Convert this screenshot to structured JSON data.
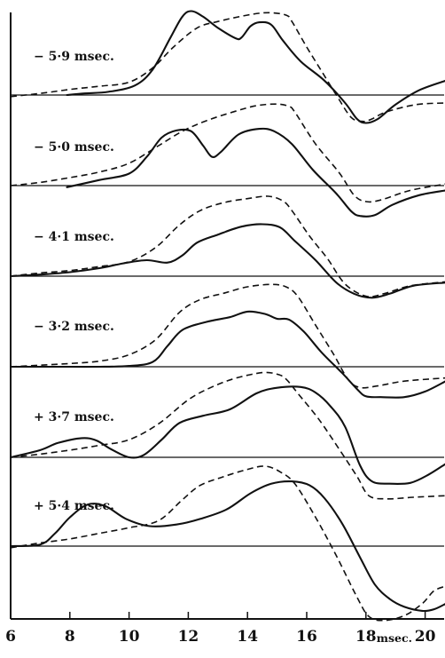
{
  "chart_data": {
    "type": "line",
    "title": "",
    "xlabel": "msec.",
    "ylabel": "",
    "xlim": [
      6,
      20.7
    ],
    "x_ticks": [
      6,
      8,
      10,
      12,
      14,
      16,
      18,
      20
    ],
    "x_tick_labels": [
      "6",
      "8",
      "10",
      "12",
      "14",
      "16",
      "18",
      "20"
    ],
    "unit_label": "msec.",
    "grid": false,
    "legend": "none",
    "note": "",
    "panels": [
      {
        "label": "− 5·9 msec.",
        "solid": [
          [
            7.9,
            0.0
          ],
          [
            8.5,
            0.1
          ],
          [
            9.3,
            0.2
          ],
          [
            10.2,
            0.6
          ],
          [
            10.8,
            1.6
          ],
          [
            11.4,
            3.6
          ],
          [
            11.8,
            4.9
          ],
          [
            12.1,
            5.25
          ],
          [
            12.5,
            4.9
          ],
          [
            13.0,
            4.2
          ],
          [
            13.6,
            3.55
          ],
          [
            13.8,
            3.6
          ],
          [
            14.1,
            4.3
          ],
          [
            14.4,
            4.55
          ],
          [
            14.8,
            4.4
          ],
          [
            15.2,
            3.4
          ],
          [
            15.8,
            2.1
          ],
          [
            16.6,
            0.9
          ],
          [
            17.3,
            -0.5
          ],
          [
            17.7,
            -1.5
          ],
          [
            18.0,
            -1.75
          ],
          [
            18.4,
            -1.5
          ],
          [
            19.0,
            -0.6
          ],
          [
            19.8,
            0.3
          ],
          [
            20.7,
            0.9
          ]
        ],
        "dashed": [
          [
            6.0,
            -0.1
          ],
          [
            7.0,
            0.1
          ],
          [
            8.0,
            0.35
          ],
          [
            9.0,
            0.55
          ],
          [
            10.0,
            0.8
          ],
          [
            10.8,
            1.7
          ],
          [
            11.5,
            3.0
          ],
          [
            12.3,
            4.2
          ],
          [
            13.0,
            4.6
          ],
          [
            14.0,
            5.0
          ],
          [
            14.7,
            5.15
          ],
          [
            15.3,
            5.0
          ],
          [
            15.5,
            4.6
          ],
          [
            16.0,
            3.0
          ],
          [
            16.5,
            1.5
          ],
          [
            17.0,
            0.0
          ],
          [
            17.5,
            -1.4
          ],
          [
            17.9,
            -1.65
          ],
          [
            18.2,
            -1.5
          ],
          [
            18.7,
            -1.05
          ],
          [
            19.7,
            -0.6
          ],
          [
            20.7,
            -0.5
          ]
        ]
      },
      {
        "label": "− 5·0 msec.",
        "solid": [
          [
            7.9,
            -0.1
          ],
          [
            9.0,
            0.35
          ],
          [
            10.0,
            0.75
          ],
          [
            10.6,
            1.8
          ],
          [
            11.1,
            3.0
          ],
          [
            11.6,
            3.45
          ],
          [
            12.1,
            3.4
          ],
          [
            12.5,
            2.5
          ],
          [
            12.8,
            1.8
          ],
          [
            13.1,
            2.1
          ],
          [
            13.7,
            3.2
          ],
          [
            14.4,
            3.55
          ],
          [
            14.9,
            3.4
          ],
          [
            15.5,
            2.6
          ],
          [
            16.2,
            1.0
          ],
          [
            17.0,
            -0.5
          ],
          [
            17.5,
            -1.6
          ],
          [
            17.8,
            -1.9
          ],
          [
            18.3,
            -1.85
          ],
          [
            18.9,
            -1.2
          ],
          [
            19.8,
            -0.6
          ],
          [
            20.7,
            -0.3
          ]
        ],
        "dashed": [
          [
            6.0,
            0.0
          ],
          [
            7.0,
            0.2
          ],
          [
            8.0,
            0.5
          ],
          [
            9.0,
            0.85
          ],
          [
            10.0,
            1.4
          ],
          [
            11.0,
            2.5
          ],
          [
            11.8,
            3.4
          ],
          [
            12.6,
            4.05
          ],
          [
            13.5,
            4.6
          ],
          [
            14.3,
            5.0
          ],
          [
            15.0,
            5.1
          ],
          [
            15.4,
            4.95
          ],
          [
            15.6,
            4.6
          ],
          [
            16.3,
            2.6
          ],
          [
            17.1,
            0.8
          ],
          [
            17.6,
            -0.6
          ],
          [
            18.0,
            -1.0
          ],
          [
            18.5,
            -0.9
          ],
          [
            19.5,
            -0.3
          ],
          [
            20.7,
            0.1
          ]
        ]
      },
      {
        "label": "− 4·1 msec.",
        "solid": [
          [
            6.0,
            0.0
          ],
          [
            7.0,
            0.1
          ],
          [
            8.0,
            0.25
          ],
          [
            9.0,
            0.5
          ],
          [
            9.8,
            0.8
          ],
          [
            10.6,
            1.0
          ],
          [
            11.3,
            0.85
          ],
          [
            11.8,
            1.3
          ],
          [
            12.3,
            2.1
          ],
          [
            13.0,
            2.6
          ],
          [
            13.8,
            3.1
          ],
          [
            14.5,
            3.25
          ],
          [
            15.1,
            3.05
          ],
          [
            15.6,
            2.2
          ],
          [
            16.3,
            1.0
          ],
          [
            17.0,
            -0.4
          ],
          [
            17.6,
            -1.1
          ],
          [
            18.2,
            -1.35
          ],
          [
            18.8,
            -1.1
          ],
          [
            19.6,
            -0.6
          ],
          [
            20.7,
            -0.4
          ]
        ],
        "dashed": [
          [
            6.0,
            0.0
          ],
          [
            7.0,
            0.2
          ],
          [
            8.0,
            0.35
          ],
          [
            9.0,
            0.6
          ],
          [
            10.0,
            0.9
          ],
          [
            10.9,
            1.8
          ],
          [
            11.7,
            3.2
          ],
          [
            12.4,
            4.1
          ],
          [
            13.2,
            4.6
          ],
          [
            14.0,
            4.85
          ],
          [
            14.7,
            5.0
          ],
          [
            15.2,
            4.7
          ],
          [
            15.5,
            4.1
          ],
          [
            16.1,
            2.5
          ],
          [
            16.7,
            1.1
          ],
          [
            17.3,
            -0.5
          ],
          [
            18.0,
            -1.25
          ],
          [
            18.6,
            -1.1
          ],
          [
            19.5,
            -0.6
          ],
          [
            20.7,
            -0.35
          ]
        ]
      },
      {
        "label": "− 3·2 msec.",
        "solid": [
          [
            6.0,
            0.0
          ],
          [
            7.0,
            0.0
          ],
          [
            8.0,
            0.0
          ],
          [
            9.0,
            0.0
          ],
          [
            10.0,
            0.05
          ],
          [
            10.8,
            0.3
          ],
          [
            11.3,
            1.3
          ],
          [
            11.8,
            2.3
          ],
          [
            12.6,
            2.8
          ],
          [
            13.4,
            3.1
          ],
          [
            14.0,
            3.45
          ],
          [
            14.6,
            3.3
          ],
          [
            15.0,
            3.0
          ],
          [
            15.4,
            2.95
          ],
          [
            15.9,
            2.2
          ],
          [
            16.5,
            0.9
          ],
          [
            17.2,
            -0.4
          ],
          [
            17.7,
            -1.4
          ],
          [
            18.0,
            -1.85
          ],
          [
            18.5,
            -1.9
          ],
          [
            19.3,
            -1.9
          ],
          [
            20.0,
            -1.55
          ],
          [
            20.7,
            -0.9
          ]
        ],
        "dashed": [
          [
            6.0,
            0.0
          ],
          [
            7.0,
            0.1
          ],
          [
            8.0,
            0.2
          ],
          [
            9.0,
            0.35
          ],
          [
            10.0,
            0.75
          ],
          [
            10.9,
            1.7
          ],
          [
            11.7,
            3.4
          ],
          [
            12.4,
            4.2
          ],
          [
            13.2,
            4.6
          ],
          [
            14.0,
            5.0
          ],
          [
            14.8,
            5.15
          ],
          [
            15.3,
            5.0
          ],
          [
            15.7,
            4.4
          ],
          [
            16.3,
            2.6
          ],
          [
            16.9,
            0.8
          ],
          [
            17.4,
            -0.8
          ],
          [
            17.8,
            -1.3
          ],
          [
            18.4,
            -1.2
          ],
          [
            19.3,
            -0.9
          ],
          [
            20.7,
            -0.7
          ]
        ]
      },
      {
        "label": "+ 3·7 msec.",
        "solid": [
          [
            6.0,
            0.0
          ],
          [
            7.0,
            0.45
          ],
          [
            7.6,
            0.9
          ],
          [
            8.4,
            1.2
          ],
          [
            8.9,
            1.05
          ],
          [
            9.4,
            0.5
          ],
          [
            10.0,
            0.0
          ],
          [
            10.5,
            0.15
          ],
          [
            11.1,
            1.1
          ],
          [
            11.7,
            2.15
          ],
          [
            12.5,
            2.6
          ],
          [
            13.4,
            3.0
          ],
          [
            14.3,
            4.0
          ],
          [
            15.0,
            4.35
          ],
          [
            15.8,
            4.4
          ],
          [
            16.3,
            4.05
          ],
          [
            16.8,
            3.2
          ],
          [
            17.3,
            1.9
          ],
          [
            17.8,
            -0.5
          ],
          [
            18.2,
            -1.5
          ],
          [
            18.8,
            -1.65
          ],
          [
            19.5,
            -1.6
          ],
          [
            20.1,
            -1.1
          ],
          [
            20.7,
            -0.4
          ]
        ],
        "dashed": [
          [
            6.0,
            0.0
          ],
          [
            7.0,
            0.2
          ],
          [
            8.0,
            0.45
          ],
          [
            9.0,
            0.75
          ],
          [
            10.0,
            1.1
          ],
          [
            11.0,
            2.1
          ],
          [
            12.0,
            3.6
          ],
          [
            12.8,
            4.4
          ],
          [
            13.6,
            4.95
          ],
          [
            14.5,
            5.3
          ],
          [
            15.0,
            5.2
          ],
          [
            15.3,
            4.9
          ],
          [
            15.7,
            4.0
          ],
          [
            16.4,
            2.4
          ],
          [
            17.1,
            0.5
          ],
          [
            17.7,
            -1.2
          ],
          [
            18.1,
            -2.4
          ],
          [
            18.7,
            -2.6
          ],
          [
            19.6,
            -2.5
          ],
          [
            20.7,
            -2.4
          ]
        ]
      },
      {
        "label": "+ 5·4 msec.",
        "solid": [
          [
            6.0,
            0.0
          ],
          [
            7.0,
            0.1
          ],
          [
            7.5,
            0.8
          ],
          [
            8.0,
            1.8
          ],
          [
            8.6,
            2.6
          ],
          [
            9.2,
            2.5
          ],
          [
            9.9,
            1.7
          ],
          [
            10.7,
            1.25
          ],
          [
            11.6,
            1.35
          ],
          [
            12.4,
            1.7
          ],
          [
            13.3,
            2.3
          ],
          [
            14.1,
            3.3
          ],
          [
            14.8,
            3.9
          ],
          [
            15.5,
            4.05
          ],
          [
            16.1,
            3.8
          ],
          [
            16.6,
            3.0
          ],
          [
            17.2,
            1.4
          ],
          [
            17.8,
            -0.7
          ],
          [
            18.3,
            -2.4
          ],
          [
            18.8,
            -3.3
          ],
          [
            19.3,
            -3.8
          ],
          [
            19.9,
            -4.05
          ],
          [
            20.3,
            -3.95
          ],
          [
            20.7,
            -3.6
          ]
        ],
        "dashed": [
          [
            6.0,
            -0.1
          ],
          [
            7.0,
            0.2
          ],
          [
            8.0,
            0.45
          ],
          [
            9.0,
            0.8
          ],
          [
            10.0,
            1.15
          ],
          [
            11.0,
            1.6
          ],
          [
            11.8,
            2.9
          ],
          [
            12.4,
            3.8
          ],
          [
            13.2,
            4.35
          ],
          [
            14.0,
            4.8
          ],
          [
            14.6,
            5.0
          ],
          [
            15.1,
            4.65
          ],
          [
            15.6,
            3.9
          ],
          [
            16.3,
            1.8
          ],
          [
            17.0,
            -0.6
          ],
          [
            17.7,
            -3.2
          ],
          [
            18.1,
            -4.4
          ],
          [
            18.6,
            -4.65
          ],
          [
            19.3,
            -4.35
          ],
          [
            19.9,
            -3.6
          ],
          [
            20.3,
            -2.8
          ],
          [
            20.7,
            -2.5
          ]
        ]
      }
    ]
  }
}
